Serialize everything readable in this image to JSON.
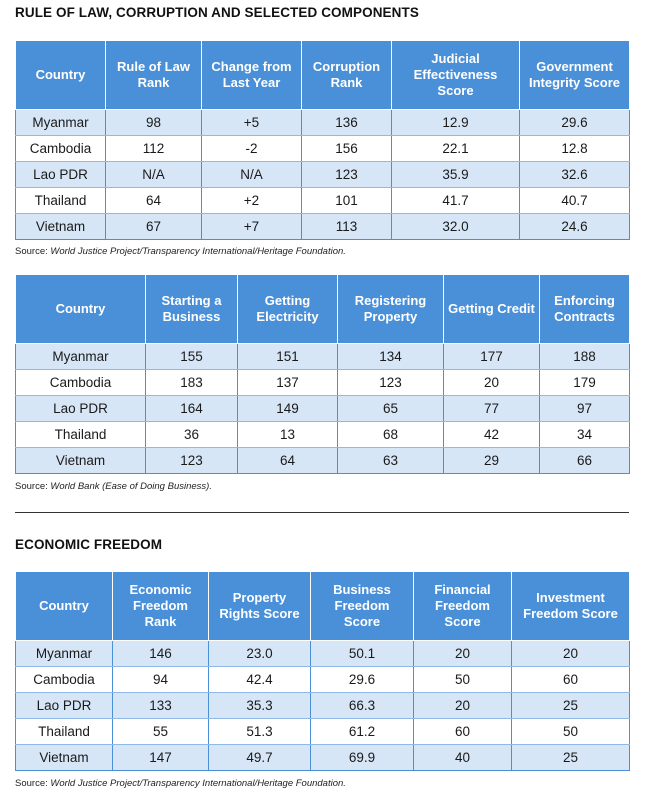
{
  "colors": {
    "header_bg": "#4a90d9",
    "row_alt": "#d7e6f7",
    "grid": "#4a90d9"
  },
  "section1": {
    "title": "RULE OF LAW, CORRUPTION AND SELECTED COMPONENTS",
    "headers": [
      "Country",
      "Rule of Law Rank",
      "Change from Last Year",
      "Corruption Rank",
      "Judicial Effectiveness Score",
      "Government Integrity Score"
    ],
    "rows": [
      [
        "Myanmar",
        "98",
        "+5",
        "136",
        "12.9",
        "29.6"
      ],
      [
        "Cambodia",
        "112",
        "-2",
        "156",
        "22.1",
        "12.8"
      ],
      [
        "Lao PDR",
        "N/A",
        "N/A",
        "123",
        "35.9",
        "32.6"
      ],
      [
        "Thailand",
        "64",
        "+2",
        "101",
        "41.7",
        "40.7"
      ],
      [
        "Vietnam",
        "67",
        "+7",
        "113",
        "32.0",
        "24.6"
      ]
    ],
    "source_label": "Source:",
    "source_text": "World Justice Project/Transparency International/Heritage Foundation."
  },
  "section2": {
    "headers": [
      "Country",
      "Starting a Business",
      "Getting Electricity",
      "Registering Property",
      "Getting Credit",
      "Enforcing Contracts"
    ],
    "rows": [
      [
        "Myanmar",
        "155",
        "151",
        "134",
        "177",
        "188"
      ],
      [
        "Cambodia",
        "183",
        "137",
        "123",
        "20",
        "179"
      ],
      [
        "Lao PDR",
        "164",
        "149",
        "65",
        "77",
        "97"
      ],
      [
        "Thailand",
        "36",
        "13",
        "68",
        "42",
        "34"
      ],
      [
        "Vietnam",
        "123",
        "64",
        "63",
        "29",
        "66"
      ]
    ],
    "source_label": "Source:",
    "source_text": "World Bank (Ease of Doing Business)."
  },
  "section3": {
    "title": "ECONOMIC FREEDOM",
    "headers": [
      "Country",
      "Economic Freedom Rank",
      "Property Rights Score",
      "Business Freedom Score",
      "Financial Freedom Score",
      "Investment Freedom Score"
    ],
    "rows": [
      [
        "Myanmar",
        "146",
        "23.0",
        "50.1",
        "20",
        "20"
      ],
      [
        "Cambodia",
        "94",
        "42.4",
        "29.6",
        "50",
        "60"
      ],
      [
        "Lao PDR",
        "133",
        "35.3",
        "66.3",
        "20",
        "25"
      ],
      [
        "Thailand",
        "55",
        "51.3",
        "61.2",
        "60",
        "50"
      ],
      [
        "Vietnam",
        "147",
        "49.7",
        "69.9",
        "40",
        "25"
      ]
    ],
    "source_label": "Source:",
    "source_text": "World Justice Project/Transparency International/Heritage Foundation."
  }
}
